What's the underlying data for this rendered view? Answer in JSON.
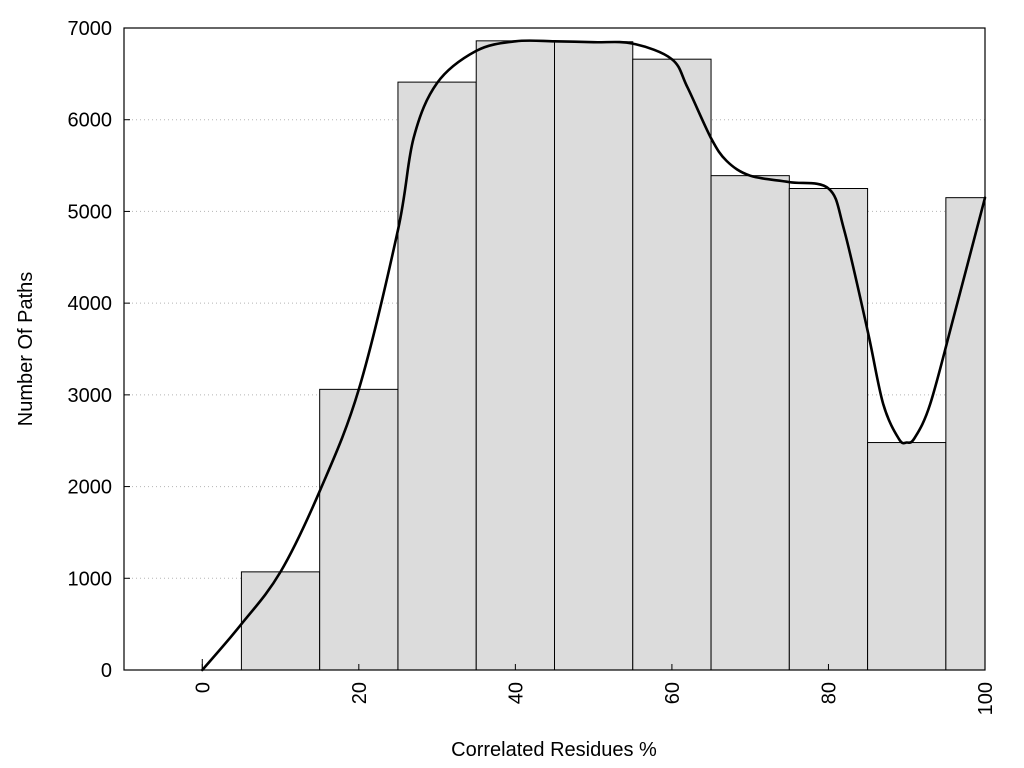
{
  "chart_data": {
    "type": "bar",
    "xlabel": "Correlated Residues %",
    "ylabel": "Number Of Paths",
    "xlim": [
      -10,
      100
    ],
    "ylim": [
      0,
      7000
    ],
    "xticks": [
      0,
      20,
      40,
      60,
      80,
      100
    ],
    "yticks": [
      0,
      1000,
      2000,
      3000,
      4000,
      5000,
      6000,
      7000
    ],
    "grid": "horizontal dotted",
    "bin_width": 10,
    "bar_color": "#dcdcdc",
    "bar_edge_color": "#000000",
    "curve_color": "#000000",
    "bars": [
      {
        "x": 0,
        "value": 0
      },
      {
        "x": 10,
        "value": 1070
      },
      {
        "x": 20,
        "value": 3060
      },
      {
        "x": 30,
        "value": 6410
      },
      {
        "x": 40,
        "value": 6860
      },
      {
        "x": 50,
        "value": 6850
      },
      {
        "x": 60,
        "value": 6660
      },
      {
        "x": 70,
        "value": 5390
      },
      {
        "x": 80,
        "value": 5250
      },
      {
        "x": 90,
        "value": 2480
      },
      {
        "x": 100,
        "value": 5150
      }
    ],
    "curve": [
      [
        0,
        0
      ],
      [
        5,
        500
      ],
      [
        10,
        1070
      ],
      [
        15,
        1950
      ],
      [
        20,
        3060
      ],
      [
        25,
        4800
      ],
      [
        27,
        5800
      ],
      [
        30,
        6400
      ],
      [
        35,
        6750
      ],
      [
        40,
        6855
      ],
      [
        45,
        6855
      ],
      [
        50,
        6845
      ],
      [
        55,
        6830
      ],
      [
        60,
        6660
      ],
      [
        62,
        6350
      ],
      [
        65,
        5800
      ],
      [
        67,
        5550
      ],
      [
        70,
        5390
      ],
      [
        75,
        5320
      ],
      [
        80,
        5250
      ],
      [
        82,
        4800
      ],
      [
        85,
        3700
      ],
      [
        87,
        2900
      ],
      [
        89,
        2520
      ],
      [
        90,
        2480
      ],
      [
        91,
        2530
      ],
      [
        93,
        2900
      ],
      [
        96,
        3850
      ],
      [
        100,
        5150
      ]
    ]
  }
}
